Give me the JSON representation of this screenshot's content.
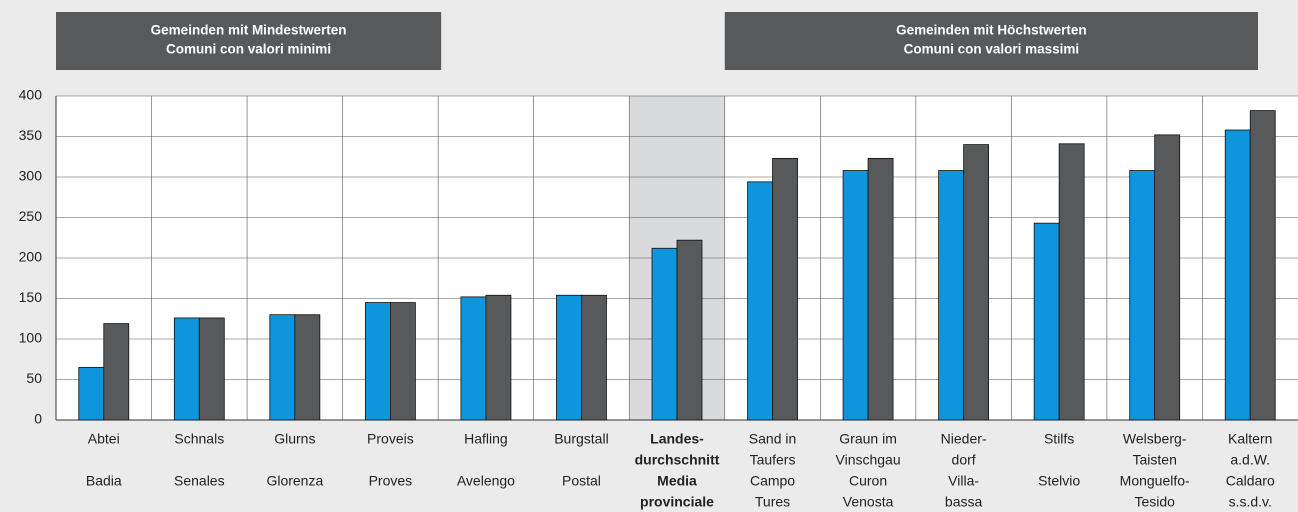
{
  "chart_data": {
    "type": "bar",
    "group_labels": [
      [
        "Gemeinden mit Mindestwerten",
        "Comuni con valori minimi"
      ],
      [
        "Gemeinden mit Höchstwerten",
        "Comuni con valori massimi"
      ]
    ],
    "categories": [
      [
        "Abtei",
        "Badia"
      ],
      [
        "Schnals",
        "Senales"
      ],
      [
        "Glurns",
        "Glorenza"
      ],
      [
        "Proveis",
        "Proves"
      ],
      [
        "Hafling",
        "Avelengo"
      ],
      [
        "Burgstall",
        "Postal"
      ],
      [
        "Landes-",
        "durchschnitt",
        "Media",
        "provinciale"
      ],
      [
        "Sand in",
        "Taufers",
        "Campo",
        "Tures"
      ],
      [
        "Graun im",
        "Vinschgau",
        "Curon",
        "Venosta"
      ],
      [
        "Nieder-",
        "dorf",
        "Villa-",
        "bassa"
      ],
      [
        "Stilfs",
        "Stelvio"
      ],
      [
        "Welsberg-",
        "Taisten",
        "Monguelfo-",
        "Tesido"
      ],
      [
        "Kaltern",
        "a.d.W.",
        "Caldaro",
        "s.s.d.v."
      ]
    ],
    "series": [
      {
        "color": "#0f95dc",
        "values": [
          65,
          126,
          130,
          145,
          152,
          154,
          212,
          294,
          308,
          308,
          243,
          308,
          358
        ]
      },
      {
        "color": "#58595b",
        "values": [
          119,
          126,
          130,
          145,
          154,
          154,
          222,
          323,
          323,
          340,
          341,
          352,
          382
        ]
      }
    ],
    "highlight_category": 6,
    "ylim": [
      0,
      400
    ],
    "yticks": [
      0,
      50,
      100,
      150,
      200,
      250,
      300,
      350,
      400
    ],
    "grid": true
  }
}
